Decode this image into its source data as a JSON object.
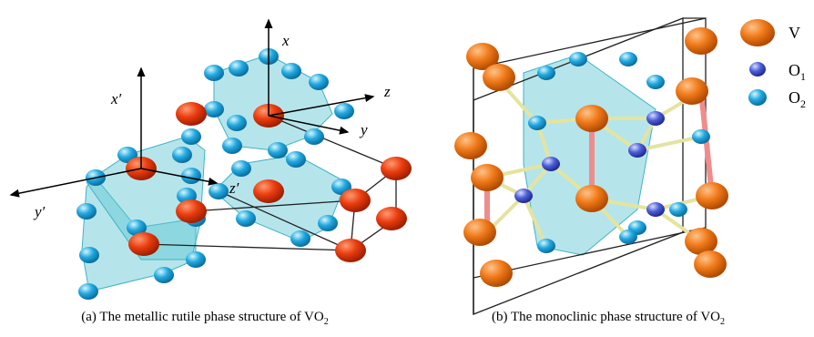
{
  "figure": {
    "panel_a": {
      "axes": {
        "x": "x",
        "y": "y",
        "z": "z",
        "x_prime": "x′",
        "y_prime": "y′",
        "z_prime": "z′"
      },
      "caption": {
        "text": "(a) The metallic rutile phase structure of VO",
        "subscript": "2"
      }
    },
    "panel_b": {
      "caption": {
        "text": "(b) The monoclinic phase structure of VO",
        "subscript": "2"
      }
    },
    "legend": [
      {
        "symbol": "V"
      },
      {
        "symbol": "O",
        "subscript": "1"
      },
      {
        "symbol": "O",
        "subscript": "2"
      }
    ]
  }
}
